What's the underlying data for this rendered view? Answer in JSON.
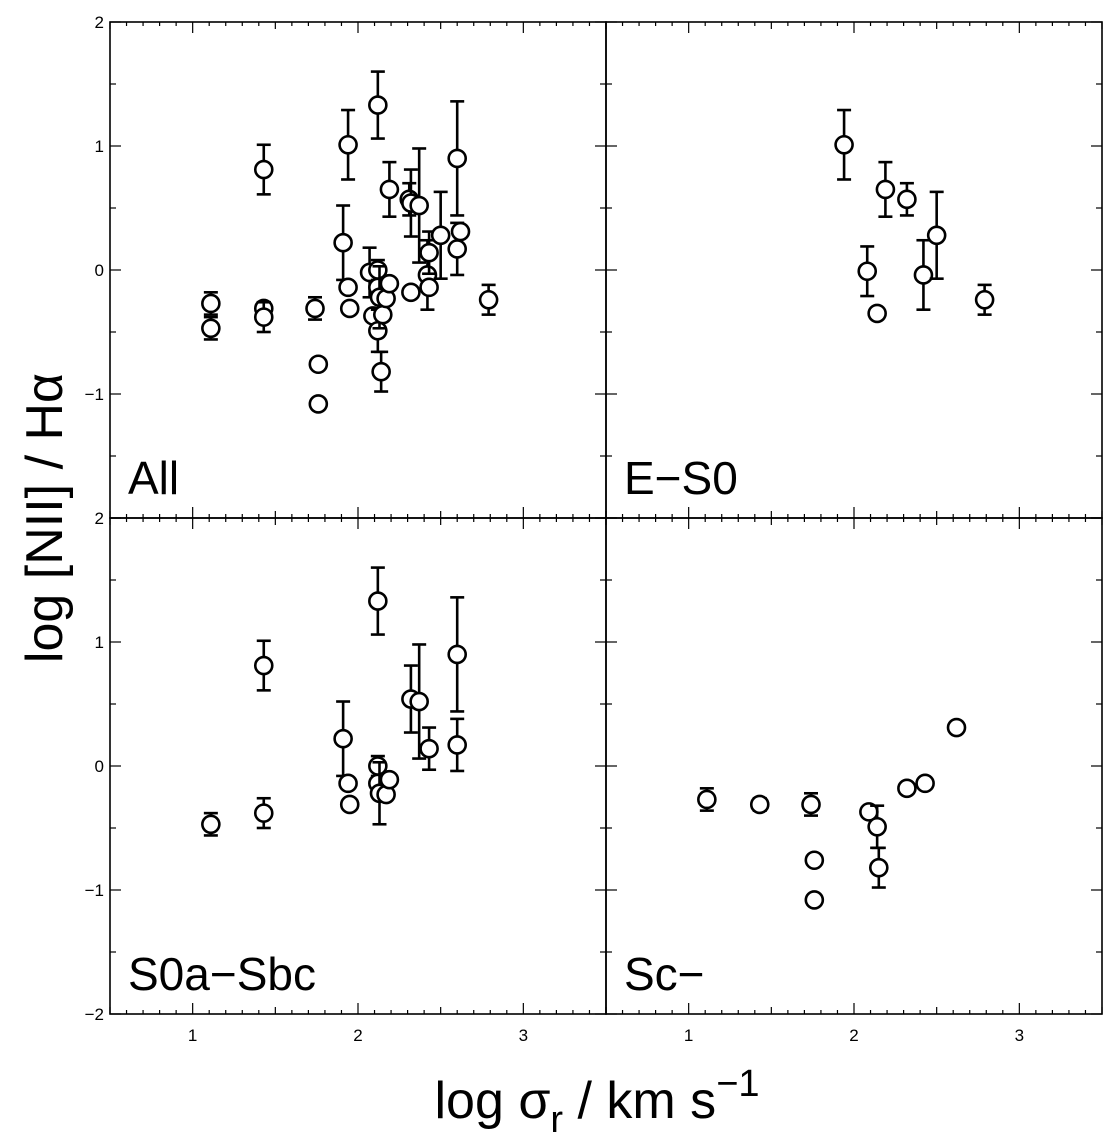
{
  "figure": {
    "ylabel": "log [NII] / Hα",
    "xlabel_main": "log σ",
    "xlabel_sub": "r",
    "xlabel_unit": " / km s",
    "xlabel_exp": "−1"
  },
  "axes": {
    "xlim": [
      0.5,
      3.5
    ],
    "ylim": [
      -2,
      2
    ],
    "x_ticks": [
      {
        "value": 1,
        "label": "1"
      },
      {
        "value": 2,
        "label": "2"
      },
      {
        "value": 3,
        "label": "3"
      }
    ],
    "y_ticks": [
      {
        "value": -2,
        "label": "−2"
      },
      {
        "value": -1,
        "label": "−1"
      },
      {
        "value": 0,
        "label": "0"
      },
      {
        "value": 1,
        "label": "1"
      },
      {
        "value": 2,
        "label": "2"
      }
    ],
    "ticks_all_sides": true,
    "grid": false
  },
  "chart_data": [
    {
      "type": "scatter",
      "panel": "top-left",
      "label": "All",
      "points": [
        {
          "x": 1.11,
          "y": -0.27,
          "err_up": 0.09,
          "err_down": 0.09
        },
        {
          "x": 1.11,
          "y": -0.47,
          "err_up": 0.09,
          "err_down": 0.09
        },
        {
          "x": 1.43,
          "y": 0.81,
          "err_up": 0.2,
          "err_down": 0.2
        },
        {
          "x": 1.43,
          "y": -0.31,
          "err_up": 0.05,
          "err_down": 0.05
        },
        {
          "x": 1.43,
          "y": -0.38,
          "err_up": 0.12,
          "err_down": 0.12
        },
        {
          "x": 1.74,
          "y": -0.31,
          "err_up": 0.09,
          "err_down": 0.09
        },
        {
          "x": 1.76,
          "y": -0.76
        },
        {
          "x": 1.76,
          "y": -1.08
        },
        {
          "x": 1.91,
          "y": 0.22,
          "err_up": 0.3,
          "err_down": 0.3
        },
        {
          "x": 1.94,
          "y": 1.01,
          "err_up": 0.28,
          "err_down": 0.28
        },
        {
          "x": 1.94,
          "y": -0.14
        },
        {
          "x": 1.95,
          "y": -0.31
        },
        {
          "x": 2.07,
          "y": -0.02,
          "err_up": 0.2,
          "err_down": 0.2
        },
        {
          "x": 2.09,
          "y": -0.37
        },
        {
          "x": 2.12,
          "y": 1.33,
          "err_up": 0.27,
          "err_down": 0.27
        },
        {
          "x": 2.12,
          "y": 0.0,
          "err_up": 0.08,
          "err_down": 0.08
        },
        {
          "x": 2.12,
          "y": -0.14
        },
        {
          "x": 2.12,
          "y": -0.49,
          "err_up": 0.17,
          "err_down": 0.17
        },
        {
          "x": 2.13,
          "y": -0.22,
          "err_up": 0.25,
          "err_down": 0.25
        },
        {
          "x": 2.14,
          "y": -0.82,
          "err_up": 0.16,
          "err_down": 0.16
        },
        {
          "x": 2.15,
          "y": -0.36
        },
        {
          "x": 2.17,
          "y": -0.23
        },
        {
          "x": 2.19,
          "y": -0.11
        },
        {
          "x": 2.19,
          "y": 0.65,
          "err_up": 0.22,
          "err_down": 0.22
        },
        {
          "x": 2.31,
          "y": 0.57,
          "err_up": 0.13,
          "err_down": 0.13
        },
        {
          "x": 2.32,
          "y": 0.54,
          "err_up": 0.27,
          "err_down": 0.27
        },
        {
          "x": 2.32,
          "y": -0.18
        },
        {
          "x": 2.37,
          "y": 0.52,
          "err_up": 0.46,
          "err_down": 0.46
        },
        {
          "x": 2.42,
          "y": -0.04,
          "err_up": 0.28,
          "err_down": 0.28
        },
        {
          "x": 2.43,
          "y": 0.14,
          "err_up": 0.17,
          "err_down": 0.17
        },
        {
          "x": 2.43,
          "y": -0.14
        },
        {
          "x": 2.5,
          "y": 0.28,
          "err_up": 0.35,
          "err_down": 0.35
        },
        {
          "x": 2.6,
          "y": 0.9,
          "err_up": 0.46,
          "err_down": 0.46
        },
        {
          "x": 2.6,
          "y": 0.17,
          "err_up": 0.21,
          "err_down": 0.21
        },
        {
          "x": 2.62,
          "y": 0.31
        },
        {
          "x": 2.79,
          "y": -0.24,
          "err_up": 0.12,
          "err_down": 0.12
        }
      ]
    },
    {
      "type": "scatter",
      "panel": "top-right",
      "label": "E−S0",
      "points": [
        {
          "x": 1.94,
          "y": 1.01,
          "err_up": 0.28,
          "err_down": 0.28
        },
        {
          "x": 2.08,
          "y": -0.01,
          "err_up": 0.2,
          "err_down": 0.2
        },
        {
          "x": 2.14,
          "y": -0.35
        },
        {
          "x": 2.19,
          "y": 0.65,
          "err_up": 0.22,
          "err_down": 0.22
        },
        {
          "x": 2.32,
          "y": 0.57,
          "err_up": 0.13,
          "err_down": 0.13
        },
        {
          "x": 2.42,
          "y": -0.04,
          "err_up": 0.28,
          "err_down": 0.28
        },
        {
          "x": 2.5,
          "y": 0.28,
          "err_up": 0.35,
          "err_down": 0.35
        },
        {
          "x": 2.79,
          "y": -0.24,
          "err_up": 0.12,
          "err_down": 0.12
        }
      ]
    },
    {
      "type": "scatter",
      "panel": "bottom-left",
      "label": "S0a−Sbc",
      "points": [
        {
          "x": 1.11,
          "y": -0.47,
          "err_up": 0.09,
          "err_down": 0.09
        },
        {
          "x": 1.43,
          "y": 0.81,
          "err_up": 0.2,
          "err_down": 0.2
        },
        {
          "x": 1.43,
          "y": -0.38,
          "err_up": 0.12,
          "err_down": 0.12
        },
        {
          "x": 1.91,
          "y": 0.22,
          "err_up": 0.3,
          "err_down": 0.3
        },
        {
          "x": 1.94,
          "y": -0.14
        },
        {
          "x": 1.95,
          "y": -0.31
        },
        {
          "x": 2.12,
          "y": 1.33,
          "err_up": 0.27,
          "err_down": 0.27
        },
        {
          "x": 2.12,
          "y": 0.0,
          "err_up": 0.08,
          "err_down": 0.08
        },
        {
          "x": 2.12,
          "y": -0.14
        },
        {
          "x": 2.13,
          "y": -0.22,
          "err_up": 0.25,
          "err_down": 0.25
        },
        {
          "x": 2.17,
          "y": -0.23
        },
        {
          "x": 2.19,
          "y": -0.11
        },
        {
          "x": 2.32,
          "y": 0.54,
          "err_up": 0.27,
          "err_down": 0.27
        },
        {
          "x": 2.37,
          "y": 0.52,
          "err_up": 0.46,
          "err_down": 0.46
        },
        {
          "x": 2.43,
          "y": 0.14,
          "err_up": 0.17,
          "err_down": 0.17
        },
        {
          "x": 2.6,
          "y": 0.9,
          "err_up": 0.46,
          "err_down": 0.46
        },
        {
          "x": 2.6,
          "y": 0.17,
          "err_up": 0.21,
          "err_down": 0.21
        }
      ]
    },
    {
      "type": "scatter",
      "panel": "bottom-right",
      "label": "Sc−",
      "points": [
        {
          "x": 1.11,
          "y": -0.27,
          "err_up": 0.09,
          "err_down": 0.09
        },
        {
          "x": 1.43,
          "y": -0.31,
          "err_up": 0.05,
          "err_down": 0.05
        },
        {
          "x": 1.74,
          "y": -0.31,
          "err_up": 0.09,
          "err_down": 0.09
        },
        {
          "x": 1.76,
          "y": -0.76
        },
        {
          "x": 1.76,
          "y": -1.08
        },
        {
          "x": 2.09,
          "y": -0.37
        },
        {
          "x": 2.14,
          "y": -0.49,
          "err_up": 0.17,
          "err_down": 0.17
        },
        {
          "x": 2.15,
          "y": -0.82,
          "err_up": 0.16,
          "err_down": 0.16
        },
        {
          "x": 2.32,
          "y": -0.18
        },
        {
          "x": 2.43,
          "y": -0.14
        },
        {
          "x": 2.62,
          "y": 0.31
        }
      ]
    }
  ]
}
